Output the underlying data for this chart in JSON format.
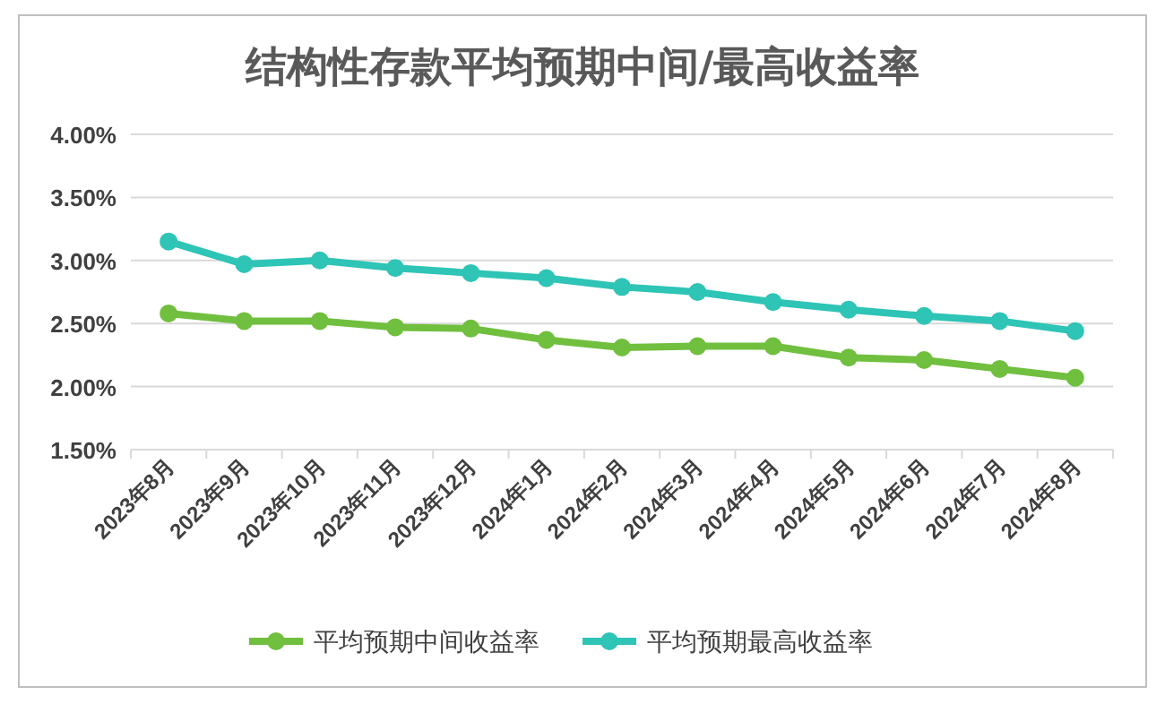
{
  "chart_data": {
    "type": "line",
    "title": "结构性存款平均预期中间/最高收益率",
    "categories": [
      "2023年8月",
      "2023年9月",
      "2023年10月",
      "2023年11月",
      "2023年12月",
      "2024年1月",
      "2024年2月",
      "2024年3月",
      "2024年4月",
      "2024年5月",
      "2024年6月",
      "2024年7月",
      "2024年8月"
    ],
    "series": [
      {
        "name": "平均预期中间收益率",
        "color": "#70bf3e",
        "values": [
          2.58,
          2.52,
          2.52,
          2.47,
          2.46,
          2.37,
          2.31,
          2.32,
          2.32,
          2.23,
          2.21,
          2.14,
          2.07
        ]
      },
      {
        "name": "平均预期最高收益率",
        "color": "#2ec4b6",
        "values": [
          3.15,
          2.97,
          3.0,
          2.94,
          2.9,
          2.86,
          2.79,
          2.75,
          2.67,
          2.61,
          2.56,
          2.52,
          2.44
        ]
      }
    ],
    "ylim": [
      1.5,
      4.0
    ],
    "yticks": [
      {
        "value": 1.5,
        "label": "1.50%"
      },
      {
        "value": 2.0,
        "label": "2.00%"
      },
      {
        "value": 2.5,
        "label": "2.50%"
      },
      {
        "value": 3.0,
        "label": "3.00%"
      },
      {
        "value": 3.5,
        "label": "3.50%"
      },
      {
        "value": 4.0,
        "label": "4.00%"
      }
    ],
    "grid": "y",
    "legend": "bottom",
    "marker": "circle",
    "line_style": "solid"
  }
}
